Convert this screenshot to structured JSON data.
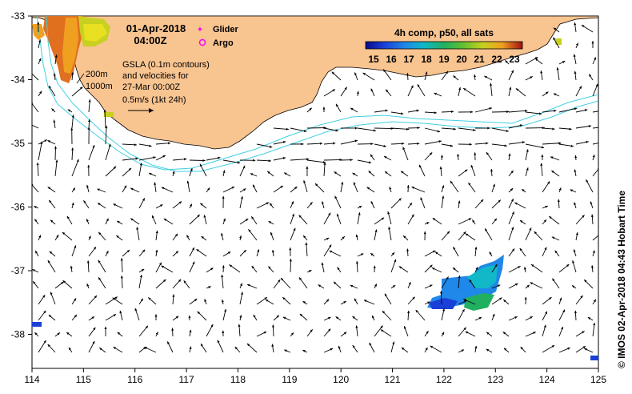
{
  "title": {
    "date": "01-Apr-2018",
    "time": "04:00Z"
  },
  "legend_markers": {
    "glider_label": "Glider",
    "argo_label": "Argo",
    "glider_color": "#ff00ff",
    "argo_color": "#ff00ff"
  },
  "depth_labels": {
    "d200": "200m",
    "d1000": "1000m"
  },
  "info_text": {
    "line1": "GSLA (0.1m contours)",
    "line2": "and velocities for",
    "line3": "27-Mar 00:00Z",
    "line4": "0.5m/s (1kt 24h)"
  },
  "colorbar": {
    "title": "4h comp, p50, all sats",
    "tick_labels": [
      "15",
      "16",
      "17",
      "18",
      "19",
      "20",
      "21",
      "22",
      "23"
    ],
    "colors": [
      "#0a0a8a",
      "#1a40d8",
      "#1f88e8",
      "#10b8c8",
      "#20b060",
      "#60c030",
      "#c8d020",
      "#f0a020",
      "#e05010",
      "#a01010"
    ]
  },
  "axes": {
    "x_ticks": [
      "114",
      "115",
      "116",
      "117",
      "118",
      "119",
      "120",
      "121",
      "122",
      "123",
      "124",
      "125"
    ],
    "y_ticks": [
      "-33",
      "-34",
      "-35",
      "-36",
      "-37",
      "-38"
    ]
  },
  "colors": {
    "land": "#f8c490",
    "contour": "#40d0e0",
    "arrow": "#000000"
  },
  "side_credit": "© IMOS 02-Apr-2018 04:43 Hobart Time"
}
